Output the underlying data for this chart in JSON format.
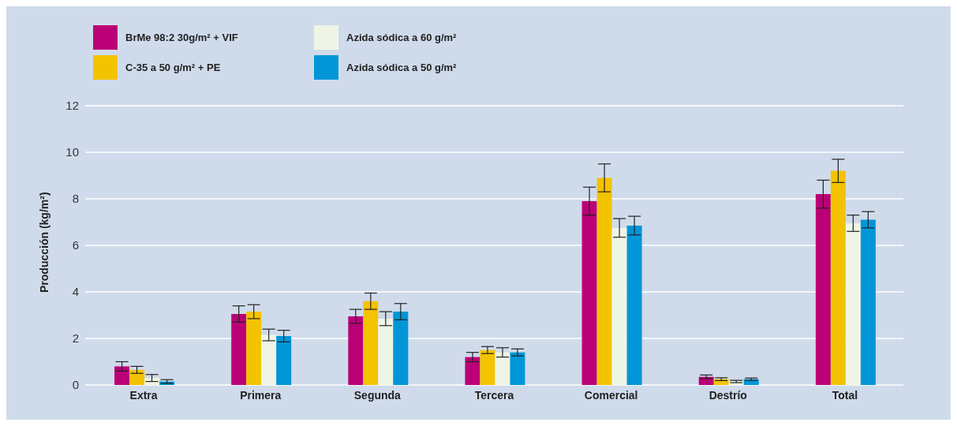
{
  "chart_data": {
    "type": "bar",
    "ylabel": "Producción (kg/m²)",
    "categories": [
      "Extra",
      "Primera",
      "Segunda",
      "Tercera",
      "Comercial",
      "Destrío",
      "Total"
    ],
    "series": [
      {
        "name": "BrMe 98:2 30g/m² + VIF",
        "color": "#bb0077",
        "values": [
          0.8,
          3.05,
          2.95,
          1.2,
          7.9,
          0.35,
          8.2
        ],
        "errors": [
          0.2,
          0.35,
          0.3,
          0.2,
          0.6,
          0.08,
          0.6
        ]
      },
      {
        "name": "C-35 a 50 g/m² + PE",
        "color": "#f4c300",
        "values": [
          0.65,
          3.15,
          3.6,
          1.5,
          8.9,
          0.25,
          9.2
        ],
        "errors": [
          0.15,
          0.3,
          0.35,
          0.15,
          0.6,
          0.06,
          0.5
        ]
      },
      {
        "name": "Azida sódica a 60 g/m²",
        "color": "#eff5e6",
        "values": [
          0.3,
          2.15,
          2.85,
          1.4,
          6.75,
          0.15,
          6.95
        ],
        "errors": [
          0.15,
          0.25,
          0.3,
          0.2,
          0.4,
          0.05,
          0.35
        ]
      },
      {
        "name": "Azida sódica a 50 g/m²",
        "color": "#0096d8",
        "values": [
          0.15,
          2.1,
          3.15,
          1.4,
          6.85,
          0.25,
          7.1
        ],
        "errors": [
          0.08,
          0.25,
          0.35,
          0.15,
          0.4,
          0.05,
          0.35
        ]
      }
    ],
    "ylim": [
      0,
      12
    ],
    "yticks": [
      0,
      2,
      4,
      6,
      8,
      10,
      12
    ],
    "grid": "y",
    "legend": "top left"
  }
}
